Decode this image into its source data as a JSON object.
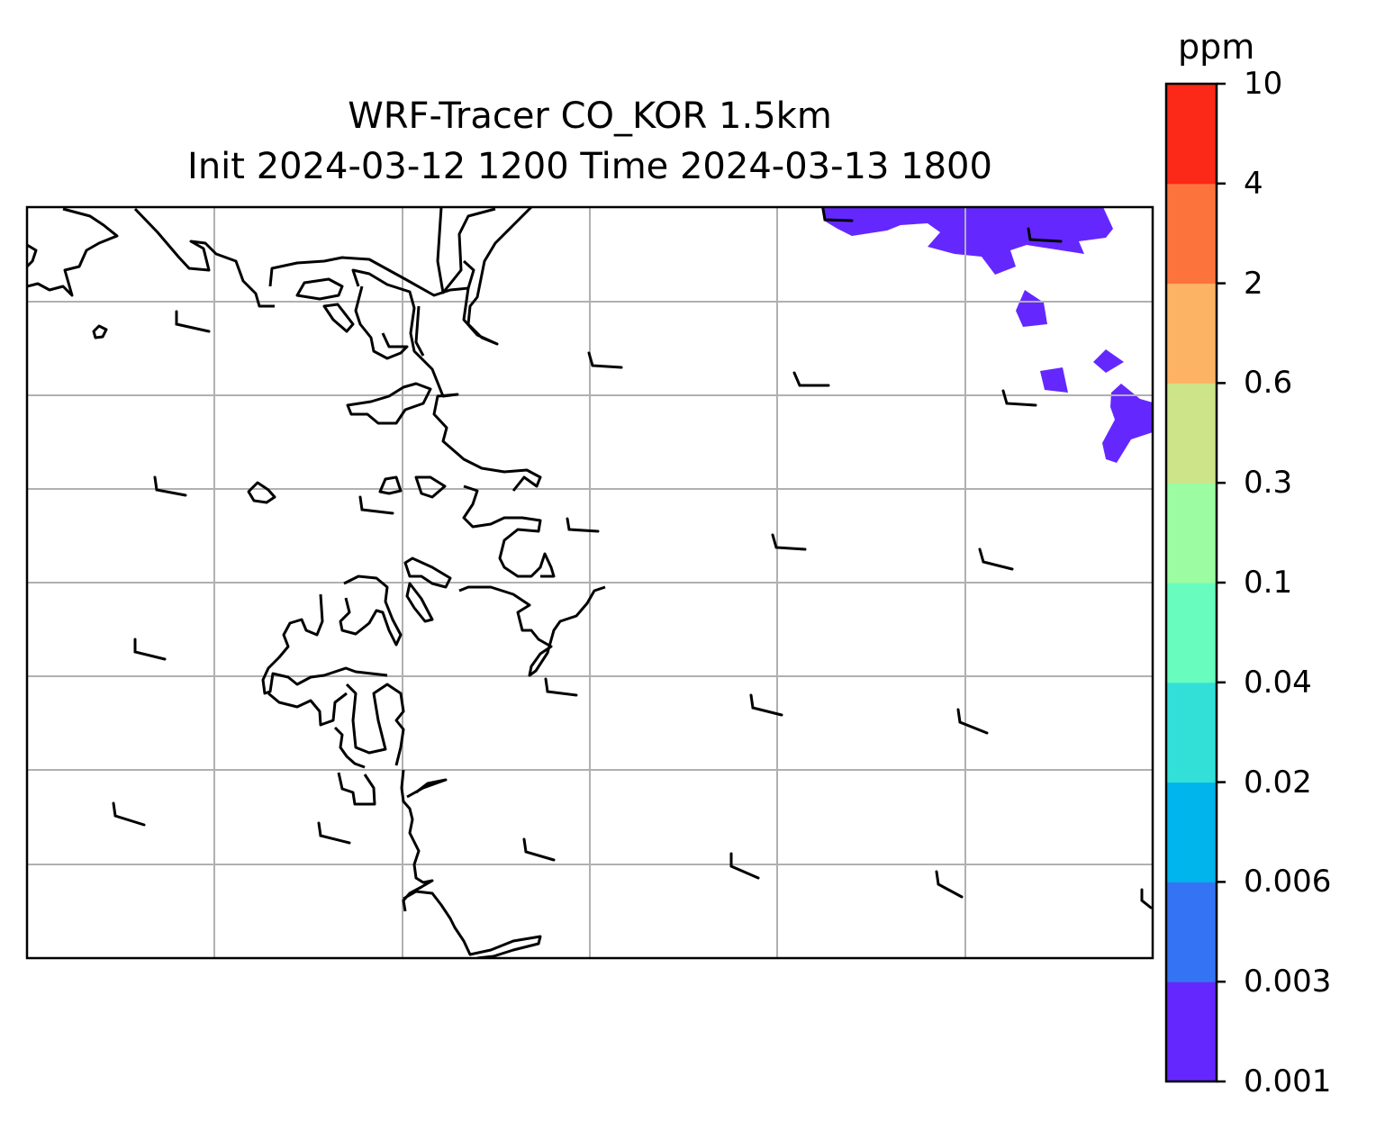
{
  "map": {
    "title_line1": "WRF-Tracer CO_KOR 1.5km",
    "title_line2": "Init 2024-03-12 1200 Time 2024-03-13 1800",
    "field_color": "#6428ff",
    "coastline_color": "#000000",
    "gridline_color": "#b0b0b0",
    "wind_barbs": true,
    "gridlines": true
  },
  "colorbar": {
    "unit": "ppm",
    "levels": [
      "0.001",
      "0.003",
      "0.006",
      "0.02",
      "0.04",
      "0.1",
      "0.3",
      "0.6",
      "2",
      "4",
      "10"
    ],
    "colors": [
      "#6428ff",
      "#3474f4",
      "#00b4ec",
      "#32e0d8",
      "#68fcbe",
      "#9cfca2",
      "#cee488",
      "#fcb464",
      "#fc743c",
      "#fc2818"
    ]
  }
}
